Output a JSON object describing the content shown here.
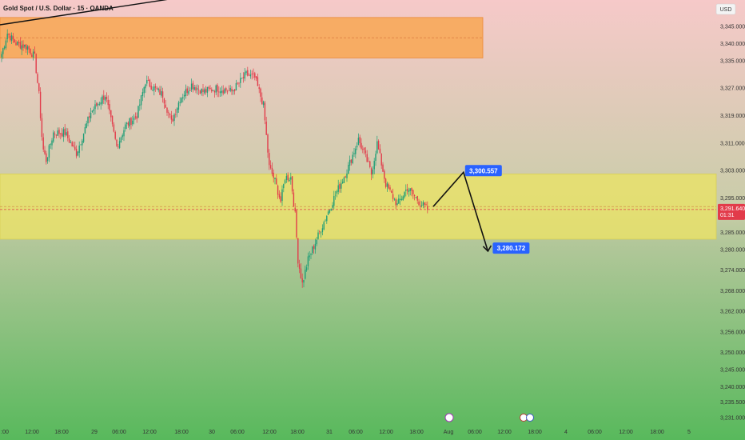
{
  "chart_data": {
    "type": "candlestick",
    "title": "Gold Spot / U.S. Dollar · 15 · OANDA",
    "currency": "USD",
    "y_ticks": [
      3345.0,
      3340.0,
      3335.0,
      3327.0,
      3319.0,
      3311.0,
      3303.0,
      3295.0,
      3285.0,
      3280.0,
      3274.0,
      3268.0,
      3262.0,
      3256.0,
      3250.0,
      3245.0,
      3240.0,
      3235.5,
      3231.0
    ],
    "y_tick_labels": [
      "3,345.000",
      "3,340.000",
      "3,335.000",
      "3,327.000",
      "3,319.000",
      "3,311.000",
      "3,303.000",
      "3,295.000",
      "3,285.000",
      "3,280.000",
      "3,274.000",
      "3,268.000",
      "3,262.000",
      "3,256.000",
      "3,250.000",
      "3,245.000",
      "3,240.000",
      "3,235.500",
      "3,231.000"
    ],
    "x_ticks": [
      ":00",
      "12:00",
      "18:00",
      "29",
      "06:00",
      "12:00",
      "18:00",
      "30",
      "06:00",
      "12:00",
      "18:00",
      "31",
      "06:00",
      "12:00",
      "18:00",
      "Aug",
      "06:00",
      "12:00",
      "18:00",
      "4",
      "06:00",
      "12:00",
      "18:00",
      "5"
    ],
    "current_price": {
      "value": 3291.64,
      "label": "3,291.640",
      "countdown": "01:31"
    },
    "callouts": [
      {
        "label": "3,300.557",
        "value": 3300.557
      },
      {
        "label": "3,280.172",
        "value": 3280.172
      }
    ],
    "zones": [
      {
        "name": "supply-zone",
        "from": 3335.8,
        "to": 3347.6,
        "color": "#f7a95b"
      },
      {
        "name": "demand-zone",
        "from": 3283.0,
        "to": 3302.0,
        "color": "#e8e06a"
      }
    ],
    "candles_per_day": 96,
    "close_path": [
      [
        0,
        3337
      ],
      [
        4,
        3343
      ],
      [
        10,
        3340
      ],
      [
        18,
        3339
      ],
      [
        23,
        3336
      ],
      [
        26,
        3325
      ],
      [
        28,
        3313
      ],
      [
        29,
        3309
      ],
      [
        31,
        3306
      ],
      [
        36,
        3314
      ],
      [
        44,
        3314
      ],
      [
        52,
        3308
      ],
      [
        62,
        3320
      ],
      [
        72,
        3325
      ],
      [
        80,
        3310
      ],
      [
        86,
        3316
      ],
      [
        94,
        3319
      ],
      [
        100,
        3329
      ],
      [
        112,
        3325
      ],
      [
        118,
        3317
      ],
      [
        124,
        3324
      ],
      [
        132,
        3328
      ],
      [
        140,
        3326
      ],
      [
        150,
        3327
      ],
      [
        160,
        3326
      ],
      [
        170,
        3331
      ],
      [
        176,
        3330
      ],
      [
        182,
        3322
      ],
      [
        186,
        3304
      ],
      [
        190,
        3300
      ],
      [
        194,
        3294
      ],
      [
        197,
        3301
      ],
      [
        201,
        3301
      ],
      [
        204,
        3290
      ],
      [
        206,
        3277
      ],
      [
        209,
        3270
      ],
      [
        213,
        3277
      ],
      [
        219,
        3283
      ],
      [
        226,
        3290
      ],
      [
        232,
        3296
      ],
      [
        240,
        3303
      ],
      [
        248,
        3312
      ],
      [
        253,
        3307
      ],
      [
        257,
        3302
      ],
      [
        261,
        3311
      ],
      [
        267,
        3299
      ],
      [
        275,
        3293
      ],
      [
        282,
        3298
      ],
      [
        290,
        3294
      ],
      [
        296,
        3291.64
      ]
    ],
    "projection": [
      {
        "index": 300,
        "value": 3292.5
      },
      {
        "index": 321,
        "value": 3302.5
      },
      {
        "index": 338,
        "value": 3279.5
      }
    ]
  }
}
